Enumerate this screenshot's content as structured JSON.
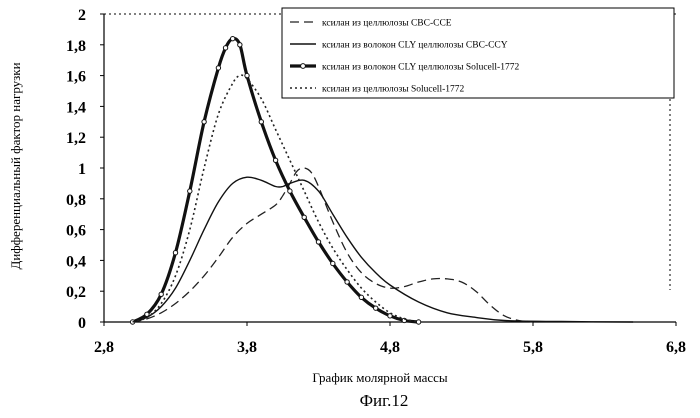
{
  "figure_caption": "Фиг.12",
  "chart_data": {
    "type": "line",
    "title": "",
    "xlabel": "График молярной массы",
    "ylabel": "Дифференциальный фактор нагрузки",
    "xlim": [
      2.8,
      6.8
    ],
    "ylim": [
      0,
      2
    ],
    "x_ticks": [
      "2,8",
      "3,8",
      "4,8",
      "5,8",
      "6,8"
    ],
    "y_ticks": [
      "0",
      "0,2",
      "0,4",
      "0,6",
      "0,8",
      "1",
      "1,2",
      "1,4",
      "1,6",
      "1,8",
      "2"
    ],
    "grid": false,
    "legend_position": "top-right",
    "series": [
      {
        "name": "ксилан из целлюлозы CBC-CCE",
        "style": "dashed",
        "points": [
          [
            3.0,
            0
          ],
          [
            3.1,
            0.02
          ],
          [
            3.2,
            0.06
          ],
          [
            3.3,
            0.12
          ],
          [
            3.4,
            0.2
          ],
          [
            3.5,
            0.3
          ],
          [
            3.6,
            0.42
          ],
          [
            3.7,
            0.55
          ],
          [
            3.8,
            0.64
          ],
          [
            3.9,
            0.7
          ],
          [
            4.0,
            0.76
          ],
          [
            4.05,
            0.82
          ],
          [
            4.1,
            0.9
          ],
          [
            4.15,
            0.98
          ],
          [
            4.2,
            1.0
          ],
          [
            4.25,
            0.97
          ],
          [
            4.3,
            0.88
          ],
          [
            4.4,
            0.65
          ],
          [
            4.5,
            0.45
          ],
          [
            4.6,
            0.32
          ],
          [
            4.7,
            0.25
          ],
          [
            4.8,
            0.22
          ],
          [
            4.9,
            0.23
          ],
          [
            5.0,
            0.26
          ],
          [
            5.1,
            0.28
          ],
          [
            5.2,
            0.28
          ],
          [
            5.3,
            0.26
          ],
          [
            5.4,
            0.2
          ],
          [
            5.5,
            0.11
          ],
          [
            5.6,
            0.04
          ],
          [
            5.7,
            0.01
          ],
          [
            5.8,
            0
          ]
        ]
      },
      {
        "name": "ксилан из волокон CLY целлюлозы CBC-CCY",
        "style": "solid",
        "points": [
          [
            3.0,
            0
          ],
          [
            3.1,
            0.03
          ],
          [
            3.2,
            0.1
          ],
          [
            3.3,
            0.22
          ],
          [
            3.4,
            0.4
          ],
          [
            3.5,
            0.6
          ],
          [
            3.6,
            0.78
          ],
          [
            3.7,
            0.9
          ],
          [
            3.8,
            0.94
          ],
          [
            3.9,
            0.92
          ],
          [
            4.0,
            0.88
          ],
          [
            4.05,
            0.88
          ],
          [
            4.1,
            0.9
          ],
          [
            4.2,
            0.92
          ],
          [
            4.3,
            0.85
          ],
          [
            4.4,
            0.7
          ],
          [
            4.5,
            0.55
          ],
          [
            4.6,
            0.42
          ],
          [
            4.7,
            0.32
          ],
          [
            4.8,
            0.24
          ],
          [
            5.0,
            0.13
          ],
          [
            5.2,
            0.06
          ],
          [
            5.4,
            0.03
          ],
          [
            5.6,
            0.01
          ],
          [
            6.0,
            0.003
          ],
          [
            6.5,
            0
          ]
        ]
      },
      {
        "name": "ксилан из волокон CLY целлюлозы Solucell-1772",
        "style": "solid-thick",
        "points": [
          [
            3.0,
            0
          ],
          [
            3.1,
            0.05
          ],
          [
            3.2,
            0.18
          ],
          [
            3.3,
            0.45
          ],
          [
            3.4,
            0.85
          ],
          [
            3.5,
            1.3
          ],
          [
            3.6,
            1.65
          ],
          [
            3.65,
            1.78
          ],
          [
            3.7,
            1.84
          ],
          [
            3.75,
            1.8
          ],
          [
            3.8,
            1.6
          ],
          [
            3.9,
            1.3
          ],
          [
            4.0,
            1.05
          ],
          [
            4.1,
            0.85
          ],
          [
            4.2,
            0.68
          ],
          [
            4.3,
            0.52
          ],
          [
            4.4,
            0.38
          ],
          [
            4.5,
            0.26
          ],
          [
            4.6,
            0.16
          ],
          [
            4.7,
            0.09
          ],
          [
            4.8,
            0.04
          ],
          [
            4.9,
            0.01
          ],
          [
            5.0,
            0
          ]
        ]
      },
      {
        "name": "ксилан из целлюлозы Solucell-1772",
        "style": "dotted",
        "points": [
          [
            3.0,
            0
          ],
          [
            3.1,
            0.03
          ],
          [
            3.2,
            0.12
          ],
          [
            3.3,
            0.3
          ],
          [
            3.4,
            0.6
          ],
          [
            3.5,
            1.0
          ],
          [
            3.6,
            1.35
          ],
          [
            3.7,
            1.55
          ],
          [
            3.75,
            1.6
          ],
          [
            3.8,
            1.58
          ],
          [
            3.9,
            1.45
          ],
          [
            4.0,
            1.25
          ],
          [
            4.1,
            1.05
          ],
          [
            4.2,
            0.85
          ],
          [
            4.3,
            0.65
          ],
          [
            4.4,
            0.48
          ],
          [
            4.5,
            0.34
          ],
          [
            4.6,
            0.22
          ],
          [
            4.7,
            0.13
          ],
          [
            4.8,
            0.06
          ],
          [
            4.9,
            0.02
          ],
          [
            5.0,
            0
          ]
        ]
      }
    ]
  }
}
